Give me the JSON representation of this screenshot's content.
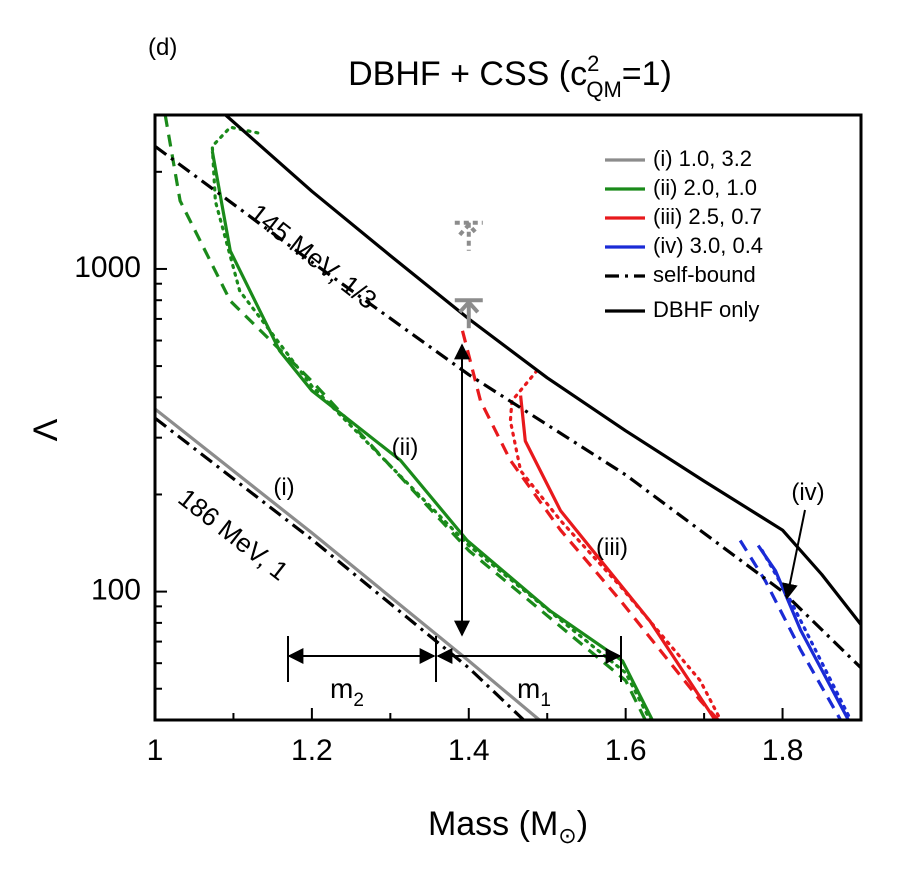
{
  "chart_data": {
    "type": "line",
    "panel": "(d)",
    "title": {
      "main": "DBHF + CSS (c",
      "sup": "2",
      "sub": "QM",
      "end": "=1)"
    },
    "x_label": {
      "main": "Mass (M",
      "sub": "⊙",
      "end": ")"
    },
    "y_label": "Λ",
    "xlim": [
      1,
      1.9
    ],
    "xticks": [
      1,
      1.2,
      1.4,
      1.6,
      1.8
    ],
    "ylim": [
      40,
      3000
    ],
    "yticks": [
      100,
      1000
    ],
    "log_y": true,
    "legend": "upper right",
    "series": [
      {
        "name": "(i) 1.0, 3.2",
        "color": "#8c8c8c",
        "curves": [
          {
            "style": "solid",
            "x": [
              1.0,
              1.2,
              1.4,
              1.49
            ],
            "values": [
              368,
              152,
              61,
              40
            ]
          }
        ]
      },
      {
        "name": "(ii) 2.0, 1.0",
        "color": "#1a8a1a",
        "curves": [
          {
            "style": "solid",
            "x": [
              1.073,
              1.096,
              1.159,
              1.2,
              1.313,
              1.398,
              1.504,
              1.596,
              1.634
            ],
            "values": [
              2318,
              1137,
              557,
              419,
              255,
              144,
              87,
              61,
              40
            ]
          },
          {
            "style": "dashed",
            "x": [
              1.013,
              1.032,
              1.096,
              1.2,
              1.4,
              1.6,
              1.625
            ],
            "values": [
              3000,
              1626,
              796,
              449,
              134,
              53,
              40
            ]
          },
          {
            "style": "dotted",
            "x": [
              1.131,
              1.096,
              1.073,
              1.077,
              1.108,
              1.2,
              1.4,
              1.6,
              1.631
            ],
            "values": [
              2640,
              2750,
              2400,
              1620,
              855,
              433,
              139,
              56,
              40
            ]
          }
        ]
      },
      {
        "name": "(iii) 2.5, 0.7",
        "color": "#e8191c",
        "curves": [
          {
            "style": "solid",
            "x": [
              1.466,
              1.472,
              1.517,
              1.568,
              1.631,
              1.714
            ],
            "values": [
              405,
              293,
              178,
              125,
              81,
              40
            ]
          },
          {
            "style": "dashed",
            "x": [
              1.392,
              1.415,
              1.453,
              1.517,
              1.593,
              1.695,
              1.718
            ],
            "values": [
              643,
              390,
              255,
              155,
              94,
              46,
              40
            ]
          },
          {
            "style": "dotted",
            "x": [
              1.487,
              1.455,
              1.453,
              1.466,
              1.517,
              1.593,
              1.695,
              1.721
            ],
            "values": [
              484,
              390,
              338,
              237,
              166,
              104,
              53,
              40
            ]
          }
        ]
      },
      {
        "name": "(iv) 3.0, 0.4",
        "color": "#1a2bd6",
        "curves": [
          {
            "style": "solid",
            "x": [
              1.769,
              1.791,
              1.823,
              1.884
            ],
            "values": [
              139,
              116,
              76,
              40
            ]
          },
          {
            "style": "dashed",
            "x": [
              1.746,
              1.778,
              1.823,
              1.874
            ],
            "values": [
              144,
              108,
              66,
              40
            ]
          },
          {
            "style": "dotted",
            "x": [
              1.774,
              1.81,
              1.887
            ],
            "values": [
              134,
              94,
              40
            ]
          }
        ]
      },
      {
        "name": "self-bound",
        "color": "#000000",
        "curves": [
          {
            "style": "dashdot",
            "x": [
              1.0,
              1.2,
              1.4,
              1.6,
              1.8,
              1.9
            ],
            "values": [
              2400,
              1050,
              470,
              230,
              100,
              58
            ]
          },
          {
            "style": "dashdot",
            "x": [
              1.0,
              1.2,
              1.4,
              1.47
            ],
            "values": [
              345,
              145,
              58,
              40
            ]
          }
        ]
      },
      {
        "name": "DBHF only",
        "color": "#000000",
        "curves": [
          {
            "style": "solid",
            "x": [
              1.09,
              1.2,
              1.3,
              1.4,
              1.5,
              1.6,
              1.7,
              1.8,
              1.85,
              1.9
            ],
            "values": [
              3000,
              1740,
              1100,
              700,
              460,
              315,
              220,
              155,
              113,
              79
            ]
          }
        ]
      }
    ],
    "markers": [
      {
        "x": 1.4,
        "y": 800,
        "color": "#8c8c8c",
        "style": "solid"
      },
      {
        "x": 1.4,
        "y": 1390,
        "color": "#8c8c8c",
        "style": "dashed"
      }
    ],
    "annotations": [
      "145 MeV, 1/3",
      "186 MeV, 1",
      "(i)",
      "(ii)",
      "(iii)",
      "(iv)"
    ],
    "arrow_labels": [
      {
        "main": "m",
        "sub": "2"
      },
      {
        "main": "m",
        "sub": "1"
      }
    ]
  }
}
